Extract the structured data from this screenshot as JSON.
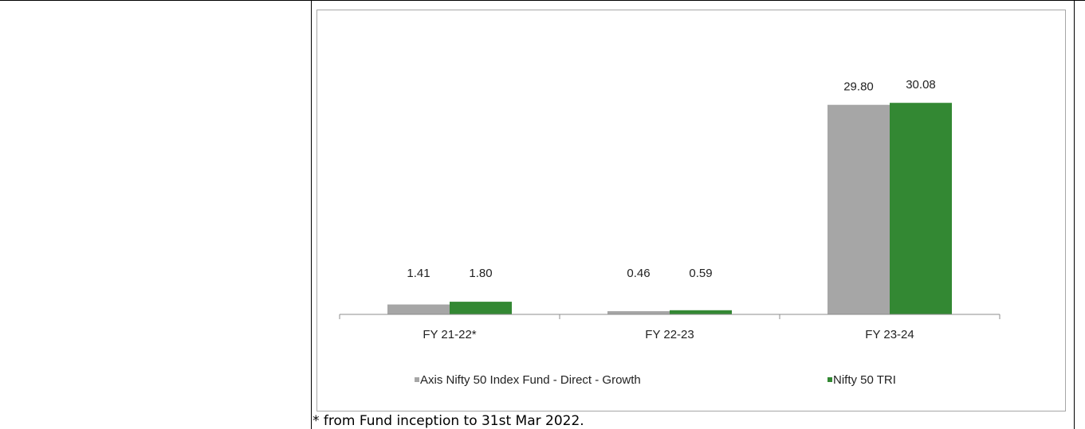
{
  "footnote": "* from Fund inception to 31st Mar 2022.",
  "chart_data": {
    "type": "bar",
    "categories": [
      "FY 21-22*",
      "FY 22-23",
      "FY 23-24"
    ],
    "series": [
      {
        "name": "Axis Nifty 50 Index Fund - Direct  - Growth",
        "color": "#a6a6a6",
        "values": [
          1.41,
          0.46,
          29.8
        ],
        "labels": [
          "1.41",
          "0.46",
          "29.80"
        ]
      },
      {
        "name": "Nifty 50 TRI",
        "color": "#338833",
        "values": [
          1.8,
          0.59,
          30.08
        ],
        "labels": [
          "1.80",
          "0.59",
          "30.08"
        ]
      }
    ],
    "ylim": [
      0,
      33.5
    ],
    "grid": false,
    "legend_position": "bottom"
  }
}
